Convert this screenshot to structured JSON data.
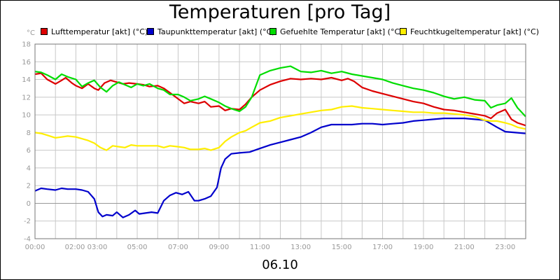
{
  "chart_data": {
    "type": "line",
    "title": "Temperaturen [pro Tag]",
    "xlabel": "06.10",
    "yunit": "°C",
    "ylim": [
      -4,
      18
    ],
    "yticks": [
      -4,
      -2,
      0,
      2,
      4,
      6,
      8,
      10,
      12,
      14,
      16,
      18
    ],
    "xlim": [
      0,
      24
    ],
    "xticks": [
      {
        "x": 0,
        "label": "00:00"
      },
      {
        "x": 2.5,
        "label": "02:00 03:00"
      },
      {
        "x": 5,
        "label": "05:00"
      },
      {
        "x": 7,
        "label": "07:00"
      },
      {
        "x": 9,
        "label": "09:00"
      },
      {
        "x": 11,
        "label": "11:00"
      },
      {
        "x": 13,
        "label": "13:00"
      },
      {
        "x": 15,
        "label": "15:00"
      },
      {
        "x": 17,
        "label": "17:00"
      },
      {
        "x": 19,
        "label": "19:00"
      },
      {
        "x": 21,
        "label": "21:00"
      },
      {
        "x": 23,
        "label": "23:00"
      }
    ],
    "grid": true,
    "legend_position": "top",
    "series": [
      {
        "name": "Lufttemperatur [akt] (°C)",
        "color": "#dd0000",
        "x": [
          0,
          0.3,
          0.6,
          1.0,
          1.3,
          1.5,
          1.8,
          2.0,
          2.3,
          2.6,
          2.9,
          3.1,
          3.4,
          3.7,
          4.0,
          4.3,
          4.6,
          5.0,
          5.3,
          5.6,
          6.0,
          6.3,
          6.6,
          7.0,
          7.3,
          7.6,
          8.0,
          8.3,
          8.6,
          9.0,
          9.3,
          9.6,
          10.0,
          10.3,
          10.6,
          11.0,
          11.5,
          12.0,
          12.5,
          13.0,
          13.5,
          14.0,
          14.5,
          15.0,
          15.3,
          15.6,
          16.0,
          16.5,
          17.0,
          17.5,
          18.0,
          18.5,
          19.0,
          19.5,
          20.0,
          20.5,
          21.0,
          21.5,
          22.0,
          22.3,
          22.6,
          23.0,
          23.3,
          23.6,
          24.0
        ],
        "values": [
          14.6,
          14.7,
          14.0,
          13.5,
          13.9,
          14.2,
          13.6,
          13.3,
          13.0,
          13.5,
          13.0,
          12.8,
          13.6,
          13.9,
          13.7,
          13.5,
          13.6,
          13.5,
          13.4,
          13.2,
          13.3,
          13.0,
          12.5,
          11.8,
          11.3,
          11.5,
          11.3,
          11.5,
          10.9,
          11.0,
          10.5,
          10.7,
          10.6,
          11.2,
          12.0,
          12.8,
          13.4,
          13.8,
          14.1,
          14.0,
          14.1,
          14.0,
          14.2,
          13.9,
          14.1,
          13.8,
          13.1,
          12.7,
          12.4,
          12.1,
          11.8,
          11.5,
          11.3,
          10.9,
          10.6,
          10.5,
          10.3,
          10.1,
          9.9,
          9.6,
          10.2,
          10.6,
          9.5,
          9.1,
          8.8
        ]
      },
      {
        "name": "Taupunkttemperatur [akt] (°C)",
        "color": "#0000cc",
        "x": [
          0,
          0.3,
          0.6,
          1.0,
          1.3,
          1.6,
          2.0,
          2.3,
          2.6,
          2.9,
          3.1,
          3.3,
          3.5,
          3.8,
          4.0,
          4.3,
          4.6,
          4.9,
          5.1,
          5.4,
          5.7,
          6.0,
          6.3,
          6.6,
          6.9,
          7.2,
          7.5,
          7.8,
          8.0,
          8.3,
          8.6,
          8.9,
          9.1,
          9.3,
          9.6,
          10.0,
          10.5,
          11.0,
          11.5,
          12.0,
          12.5,
          13.0,
          13.5,
          14.0,
          14.5,
          15.0,
          15.5,
          16.0,
          16.5,
          17.0,
          17.5,
          18.0,
          18.5,
          19.0,
          19.5,
          20.0,
          20.5,
          21.0,
          21.5,
          22.0,
          22.3,
          22.6,
          23.0,
          23.5,
          24.0
        ],
        "values": [
          1.4,
          1.7,
          1.6,
          1.5,
          1.7,
          1.6,
          1.6,
          1.5,
          1.3,
          0.5,
          -1.0,
          -1.5,
          -1.3,
          -1.4,
          -1.0,
          -1.6,
          -1.3,
          -0.8,
          -1.2,
          -1.1,
          -1.0,
          -1.1,
          0.3,
          0.9,
          1.2,
          1.0,
          1.3,
          0.3,
          0.3,
          0.5,
          0.8,
          1.8,
          4.0,
          5.0,
          5.6,
          5.7,
          5.8,
          6.2,
          6.6,
          6.9,
          7.2,
          7.5,
          8.0,
          8.6,
          8.9,
          8.9,
          8.9,
          9.0,
          9.0,
          8.9,
          9.0,
          9.1,
          9.3,
          9.4,
          9.5,
          9.6,
          9.6,
          9.6,
          9.5,
          9.4,
          9.0,
          8.6,
          8.1,
          8.0,
          7.9
        ]
      },
      {
        "name": "Gefuehlte Temperatur [akt] (°C)",
        "color": "#00dd00",
        "x": [
          0,
          0.3,
          0.6,
          1.0,
          1.3,
          1.6,
          2.0,
          2.3,
          2.6,
          2.9,
          3.2,
          3.5,
          3.8,
          4.1,
          4.4,
          4.7,
          5.0,
          5.3,
          5.6,
          6.0,
          6.3,
          6.6,
          7.0,
          7.3,
          7.6,
          8.0,
          8.3,
          8.6,
          9.0,
          9.3,
          9.6,
          10.0,
          10.3,
          10.6,
          11.0,
          11.5,
          12.0,
          12.5,
          13.0,
          13.5,
          14.0,
          14.5,
          15.0,
          15.5,
          16.0,
          16.5,
          17.0,
          17.5,
          18.0,
          18.5,
          19.0,
          19.5,
          20.0,
          20.5,
          21.0,
          21.5,
          22.0,
          22.3,
          22.6,
          23.0,
          23.3,
          23.6,
          24.0
        ],
        "values": [
          14.9,
          14.8,
          14.5,
          14.0,
          14.6,
          14.3,
          14.0,
          13.2,
          13.6,
          13.9,
          13.1,
          12.6,
          13.3,
          13.7,
          13.4,
          13.1,
          13.5,
          13.3,
          13.5,
          13.0,
          12.8,
          12.3,
          12.3,
          12.0,
          11.6,
          11.8,
          12.1,
          11.8,
          11.4,
          11.0,
          10.7,
          10.4,
          10.9,
          12.0,
          14.5,
          15.0,
          15.3,
          15.5,
          14.9,
          14.8,
          15.0,
          14.7,
          14.9,
          14.6,
          14.4,
          14.2,
          14.0,
          13.6,
          13.3,
          13.0,
          12.8,
          12.5,
          12.1,
          11.8,
          12.0,
          11.7,
          11.6,
          10.8,
          11.1,
          11.3,
          11.9,
          10.8,
          9.8
        ]
      },
      {
        "name": "Feuchtkugeltemperatur [akt] (°C)",
        "color": "#ffee00",
        "x": [
          0,
          0.3,
          0.6,
          1.0,
          1.3,
          1.6,
          2.0,
          2.3,
          2.6,
          2.9,
          3.2,
          3.5,
          3.8,
          4.1,
          4.4,
          4.7,
          5.0,
          5.3,
          5.6,
          6.0,
          6.3,
          6.6,
          7.0,
          7.3,
          7.6,
          8.0,
          8.3,
          8.6,
          9.0,
          9.3,
          9.6,
          10.0,
          10.3,
          10.6,
          11.0,
          11.5,
          12.0,
          12.5,
          13.0,
          13.5,
          14.0,
          14.5,
          15.0,
          15.5,
          16.0,
          16.5,
          17.0,
          17.5,
          18.0,
          18.5,
          19.0,
          19.5,
          20.0,
          20.5,
          21.0,
          21.5,
          22.0,
          22.3,
          22.6,
          23.0,
          23.3,
          23.6,
          24.0
        ],
        "values": [
          8.0,
          7.9,
          7.7,
          7.4,
          7.5,
          7.6,
          7.5,
          7.3,
          7.1,
          6.8,
          6.3,
          6.0,
          6.5,
          6.4,
          6.3,
          6.6,
          6.5,
          6.5,
          6.5,
          6.5,
          6.3,
          6.5,
          6.4,
          6.3,
          6.1,
          6.1,
          6.2,
          6.0,
          6.3,
          7.0,
          7.5,
          8.0,
          8.2,
          8.6,
          9.1,
          9.3,
          9.7,
          9.9,
          10.1,
          10.3,
          10.5,
          10.6,
          10.9,
          11.0,
          10.8,
          10.7,
          10.6,
          10.5,
          10.4,
          10.3,
          10.3,
          10.2,
          10.2,
          10.1,
          10.0,
          9.8,
          9.4,
          9.3,
          9.3,
          9.1,
          8.9,
          8.6,
          8.4
        ]
      }
    ]
  }
}
